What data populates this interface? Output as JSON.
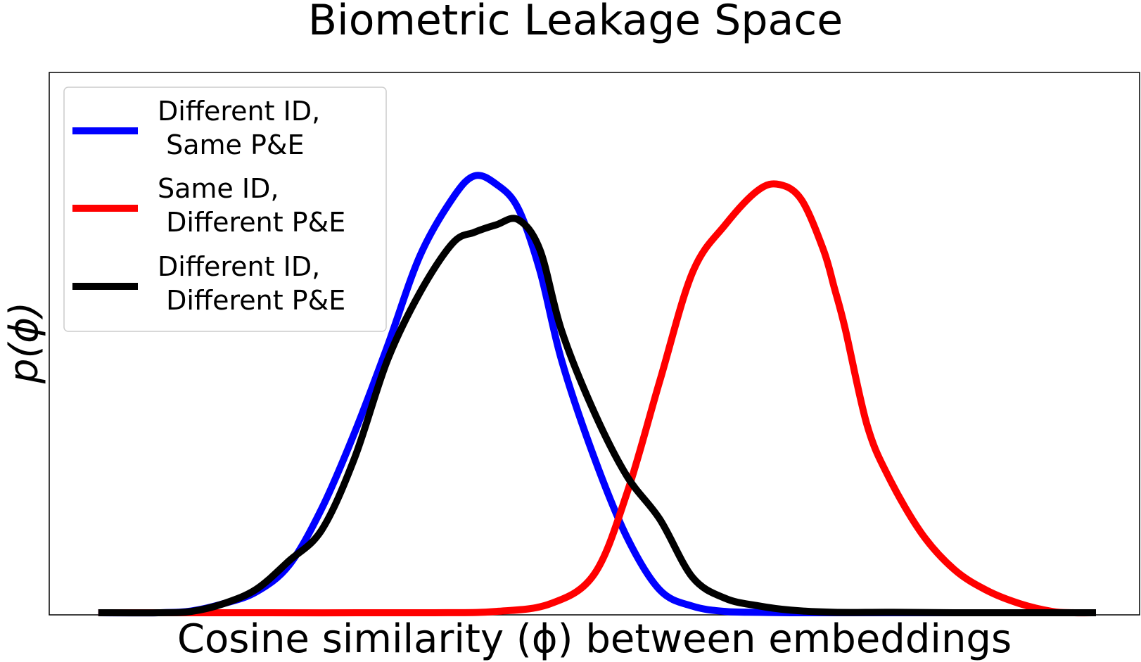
{
  "chart_data": {
    "type": "line",
    "title": "Biometric Leakage Space",
    "xlabel": "Cosine similarity (ϕ) between embeddings",
    "ylabel": "p(ϕ)",
    "xlim": [
      0,
      1
    ],
    "ylim": [
      0,
      1
    ],
    "x_ticks_visible": false,
    "y_ticks_visible": false,
    "grid": false,
    "legend_placement": "top-left",
    "series": [
      {
        "name_lines": [
          "Different ID,",
          " Same P&E"
        ],
        "color": "#0000ff",
        "x": [
          0.045,
          0.1,
          0.13,
          0.16,
          0.19,
          0.22,
          0.25,
          0.28,
          0.31,
          0.34,
          0.37,
          0.39,
          0.41,
          0.43,
          0.45,
          0.47,
          0.5,
          0.53,
          0.56,
          0.59,
          0.62,
          0.65,
          0.68,
          0.72,
          0.77,
          0.83,
          0.9,
          0.96
        ],
        "y": [
          0.0,
          0.0,
          0.004,
          0.021,
          0.048,
          0.109,
          0.239,
          0.412,
          0.609,
          0.817,
          0.949,
          1.0,
          0.981,
          0.926,
          0.783,
          0.577,
          0.354,
          0.172,
          0.052,
          0.015,
          0.003,
          0.001,
          0.0,
          0.0,
          0.0,
          0.0,
          0.0,
          0.0
        ]
      },
      {
        "name_lines": [
          "Same ID,",
          "  Different P&E"
        ],
        "color": "#ff0000",
        "x": [
          0.045,
          0.2,
          0.35,
          0.41,
          0.46,
          0.5,
          0.53,
          0.56,
          0.59,
          0.62,
          0.65,
          0.67,
          0.69,
          0.71,
          0.72,
          0.73,
          0.75,
          0.77,
          0.8,
          0.83,
          0.86,
          0.89,
          0.92,
          0.94,
          0.96
        ],
        "y": [
          0.0,
          0.0,
          0.0,
          0.003,
          0.021,
          0.089,
          0.275,
          0.531,
          0.779,
          0.888,
          0.967,
          0.98,
          0.945,
          0.831,
          0.744,
          0.65,
          0.43,
          0.31,
          0.182,
          0.099,
          0.051,
          0.021,
          0.003,
          0.0,
          0.0
        ]
      },
      {
        "name_lines": [
          "Different ID,",
          " Different P&E"
        ],
        "color": "#000000",
        "x": [
          0.045,
          0.1,
          0.13,
          0.16,
          0.19,
          0.22,
          0.25,
          0.28,
          0.31,
          0.34,
          0.37,
          0.39,
          0.41,
          0.43,
          0.45,
          0.47,
          0.5,
          0.53,
          0.56,
          0.59,
          0.62,
          0.65,
          0.68,
          0.72,
          0.77,
          0.83,
          0.9,
          0.96
        ],
        "y": [
          0.0,
          0.0,
          0.003,
          0.021,
          0.054,
          0.119,
          0.19,
          0.354,
          0.577,
          0.733,
          0.846,
          0.871,
          0.888,
          0.9,
          0.831,
          0.645,
          0.458,
          0.312,
          0.214,
          0.081,
          0.033,
          0.016,
          0.006,
          0.001,
          0.001,
          0.0,
          0.0,
          0.0
        ]
      }
    ]
  }
}
